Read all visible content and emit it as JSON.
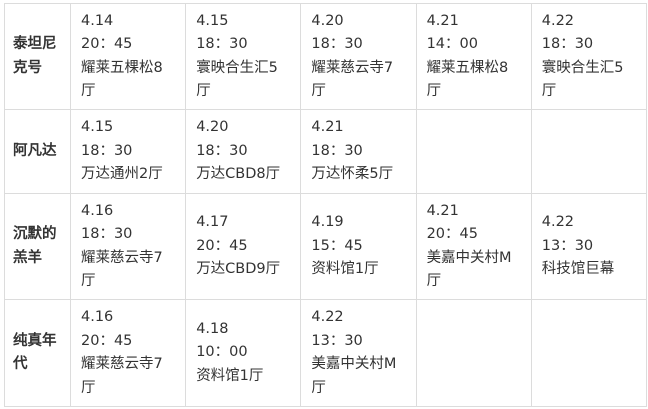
{
  "table": {
    "rows": [
      {
        "movie": "泰坦尼克号",
        "screenings": [
          {
            "date": "4.14",
            "time": "20：45",
            "venue": "耀莱五棵松8厅"
          },
          {
            "date": "4.15",
            "time": "18：30",
            "venue": "寰映合生汇5厅"
          },
          {
            "date": "4.20",
            "time": "18：30",
            "venue": "耀莱慈云寺7厅"
          },
          {
            "date": "4.21",
            "time": "14：00",
            "venue": "耀莱五棵松8厅"
          },
          {
            "date": "4.22",
            "time": "18：30",
            "venue": "寰映合生汇5厅"
          }
        ]
      },
      {
        "movie": "阿凡达",
        "screenings": [
          {
            "date": "4.15",
            "time": "18：30",
            "venue": "万达通州2厅"
          },
          {
            "date": "4.20",
            "time": "18：30",
            "venue": "万达CBD8厅"
          },
          {
            "date": "4.21",
            "time": "18：30",
            "venue": "万达怀柔5厅"
          }
        ]
      },
      {
        "movie": "沉默的羔羊",
        "screenings": [
          {
            "date": "4.16",
            "time": "18：30",
            "venue": "耀莱慈云寺7厅"
          },
          {
            "date": "4.17",
            "time": "20：45",
            "venue": "万达CBD9厅"
          },
          {
            "date": "4.19",
            "time": "15：45",
            "venue": "资料馆1厅"
          },
          {
            "date": "4.21",
            "time": "20：45",
            "venue": "美嘉中关村M厅"
          },
          {
            "date": "4.22",
            "time": "13：30",
            "venue": "科技馆巨幕"
          }
        ]
      },
      {
        "movie": "纯真年代",
        "screenings": [
          {
            "date": "4.16",
            "time": "20：45",
            "venue": "耀莱慈云寺7厅"
          },
          {
            "date": "4.18",
            "time": "10：00",
            "venue": "资料馆1厅"
          },
          {
            "date": "4.22",
            "time": "13：30",
            "venue": "美嘉中关村M厅"
          }
        ]
      }
    ]
  }
}
